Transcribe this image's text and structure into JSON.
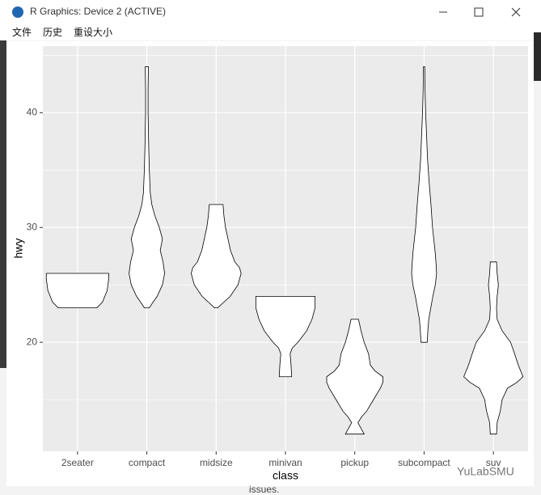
{
  "window": {
    "title": "R Graphics: Device 2 (ACTIVE)",
    "menu": [
      "文件",
      "历史",
      "重设大小"
    ],
    "background_text": "issues.",
    "watermark": "YuLabSMU"
  },
  "chart_data": {
    "type": "violin",
    "x_label": "class",
    "y_label": "hwy",
    "categories": [
      "2seater",
      "compact",
      "midsize",
      "minivan",
      "pickup",
      "subcompact",
      "suv"
    ],
    "violins": [
      {
        "y": [
          23,
          23.5,
          24.5,
          25.5,
          26
        ],
        "width": [
          0.62,
          0.8,
          0.95,
          1,
          1
        ]
      },
      {
        "y": [
          23,
          23.5,
          24,
          25,
          26,
          27,
          28,
          29,
          30,
          31,
          32,
          33,
          35,
          37,
          38.5,
          40,
          42,
          44
        ],
        "width": [
          0.08,
          0.2,
          0.33,
          0.5,
          0.57,
          0.52,
          0.43,
          0.5,
          0.4,
          0.26,
          0.16,
          0.11,
          0.08,
          0.06,
          0.05,
          0.04,
          0.04,
          0.05
        ]
      },
      {
        "y": [
          23,
          23.5,
          24,
          25,
          26,
          26.5,
          27,
          28,
          29,
          30,
          31,
          32
        ],
        "width": [
          0.05,
          0.25,
          0.45,
          0.7,
          0.8,
          0.75,
          0.6,
          0.46,
          0.38,
          0.3,
          0.25,
          0.22
        ]
      },
      {
        "y": [
          17,
          18,
          19,
          19.5,
          20,
          21,
          22,
          23,
          24
        ],
        "width": [
          0.2,
          0.18,
          0.15,
          0.22,
          0.4,
          0.68,
          0.85,
          0.95,
          0.95
        ]
      },
      {
        "y": [
          12,
          12.5,
          13,
          13.5,
          14,
          15,
          16,
          16.5,
          17,
          17.5,
          18,
          19,
          20,
          21,
          22
        ],
        "width": [
          0.3,
          0.2,
          0.1,
          0.22,
          0.38,
          0.6,
          0.82,
          0.9,
          0.9,
          0.65,
          0.5,
          0.44,
          0.3,
          0.2,
          0.12
        ]
      },
      {
        "y": [
          20,
          21,
          22,
          24,
          25,
          26,
          27,
          28,
          30,
          32,
          34,
          36,
          38,
          40,
          42,
          44
        ],
        "width": [
          0.1,
          0.12,
          0.15,
          0.28,
          0.36,
          0.4,
          0.38,
          0.35,
          0.27,
          0.22,
          0.16,
          0.11,
          0.08,
          0.05,
          0.03,
          0.02
        ]
      },
      {
        "y": [
          12,
          13,
          14,
          15,
          16,
          16.5,
          17,
          18,
          19,
          20,
          21,
          22,
          23,
          24,
          25,
          26,
          27
        ],
        "width": [
          0.1,
          0.12,
          0.22,
          0.28,
          0.45,
          0.75,
          0.95,
          0.8,
          0.68,
          0.55,
          0.28,
          0.12,
          0.1,
          0.12,
          0.16,
          0.12,
          0.1
        ]
      }
    ],
    "fill": "#ffffff",
    "outline": "#000000",
    "panel_color": "#ebebeb",
    "ylim": [
      10.5,
      45.8
    ],
    "yticks": [
      20,
      30,
      40
    ],
    "yminor": [
      15,
      25,
      35,
      45
    ],
    "grid": true
  }
}
